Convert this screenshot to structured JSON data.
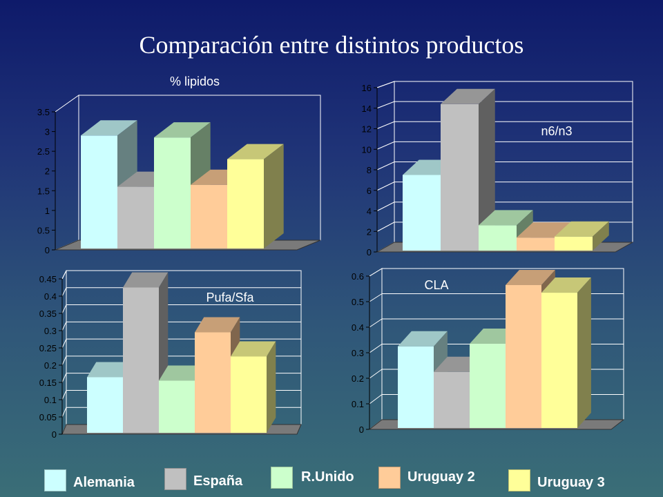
{
  "title": "Comparación entre distintos productos",
  "colors": {
    "Alemania": "#ccffff",
    "España": "#c0c0c0",
    "R.Unido": "#ccffcc",
    "Uruguay 2": "#ffcc99",
    "Uruguay 3": "#ffff99"
  },
  "legend": [
    "Alemania",
    "España",
    "R.Unido",
    "Uruguay 2",
    "Uruguay 3"
  ],
  "chart_data": [
    {
      "type": "bar",
      "label": "% lipidos",
      "categories": [
        "Alemania",
        "España",
        "R.Unido",
        "Uruguay 2",
        "Uruguay 3"
      ],
      "values": [
        2.9,
        1.6,
        2.85,
        1.65,
        2.3
      ],
      "ylim": [
        0,
        3.5
      ],
      "yticks": [
        "0",
        "0.5",
        "1",
        "1.5",
        "2",
        "2.5",
        "3",
        "3.5"
      ],
      "grid": false
    },
    {
      "type": "bar",
      "label": "n6/n3",
      "categories": [
        "Alemania",
        "España",
        "R.Unido",
        "Uruguay 2",
        "Uruguay 3"
      ],
      "values": [
        7.5,
        14.4,
        2.6,
        1.4,
        1.5
      ],
      "ylim": [
        0,
        16
      ],
      "yticks": [
        "0",
        "2",
        "4",
        "6",
        "8",
        "10",
        "12",
        "14",
        "16"
      ],
      "grid": true
    },
    {
      "type": "bar",
      "label": "Pufa/Sfa",
      "categories": [
        "Alemania",
        "España",
        "R.Unido",
        "Uruguay 2",
        "Uruguay 3"
      ],
      "values": [
        0.165,
        0.425,
        0.155,
        0.295,
        0.225
      ],
      "ylim": [
        0,
        0.45
      ],
      "yticks": [
        "0",
        "0.05",
        "0.1",
        "0.15",
        "0.2",
        "0.25",
        "0.3",
        "0.35",
        "0.4",
        "0.45"
      ],
      "grid": true
    },
    {
      "type": "bar",
      "label": "CLA",
      "categories": [
        "Alemania",
        "España",
        "R.Unido",
        "Uruguay 2",
        "Uruguay 3"
      ],
      "values": [
        0.325,
        0.225,
        0.335,
        0.565,
        0.535
      ],
      "ylim": [
        0,
        0.6
      ],
      "yticks": [
        "0",
        "0.1",
        "0.2",
        "0.3",
        "0.4",
        "0.5",
        "0.6"
      ],
      "grid": true
    }
  ]
}
